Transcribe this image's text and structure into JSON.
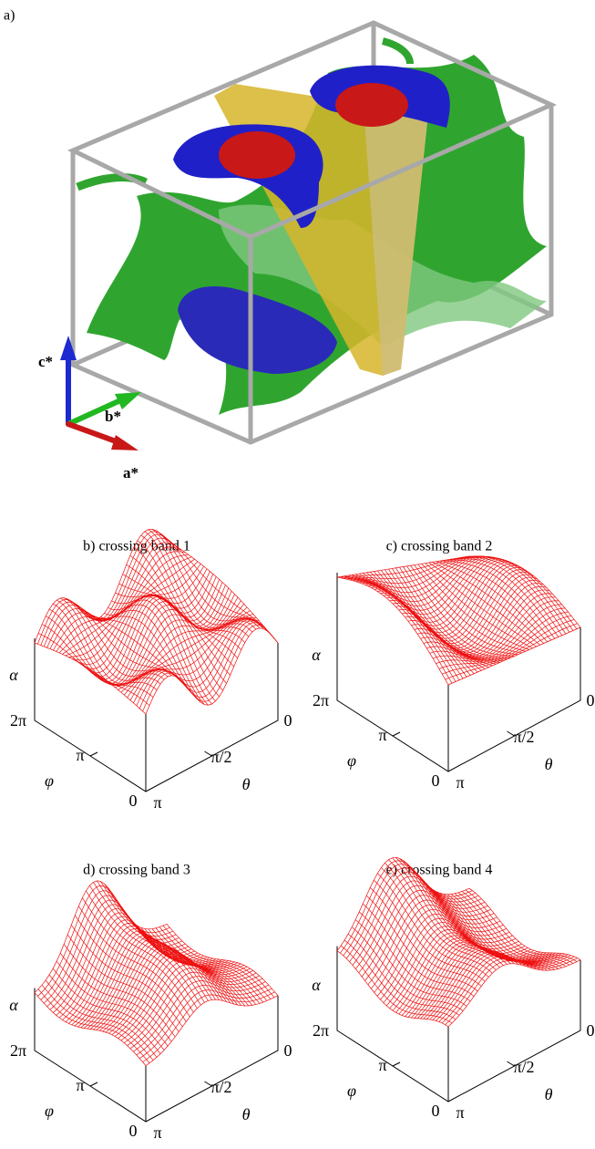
{
  "figure": {
    "panel_a": {
      "label": "a)",
      "axis_labels": {
        "c": "c*",
        "b": "b*",
        "a": "a*"
      }
    },
    "subplots": [
      {
        "title": "b) crossing band 1",
        "z_label": "α",
        "phi_label": "φ",
        "phi_ticks": [
          "2π",
          "π",
          "0"
        ],
        "theta_label": "θ",
        "theta_ticks": [
          "π",
          "π/2",
          "0"
        ]
      },
      {
        "title": "c) crossing band 2",
        "z_label": "α",
        "phi_label": "φ",
        "phi_ticks": [
          "2π",
          "π",
          "0"
        ],
        "theta_label": "θ",
        "theta_ticks": [
          "π",
          "π/2",
          "0"
        ]
      },
      {
        "title": "d) crossing band 3",
        "z_label": "α",
        "phi_label": "φ",
        "phi_ticks": [
          "2π",
          "π",
          "0"
        ],
        "theta_label": "θ",
        "theta_ticks": [
          "π",
          "π/2",
          "0"
        ]
      },
      {
        "title": "e) crossing band 4",
        "z_label": "α",
        "phi_label": "φ",
        "phi_ticks": [
          "2π",
          "π",
          "0"
        ],
        "theta_label": "θ",
        "theta_ticks": [
          "π",
          "π/2",
          "0"
        ]
      }
    ]
  }
}
